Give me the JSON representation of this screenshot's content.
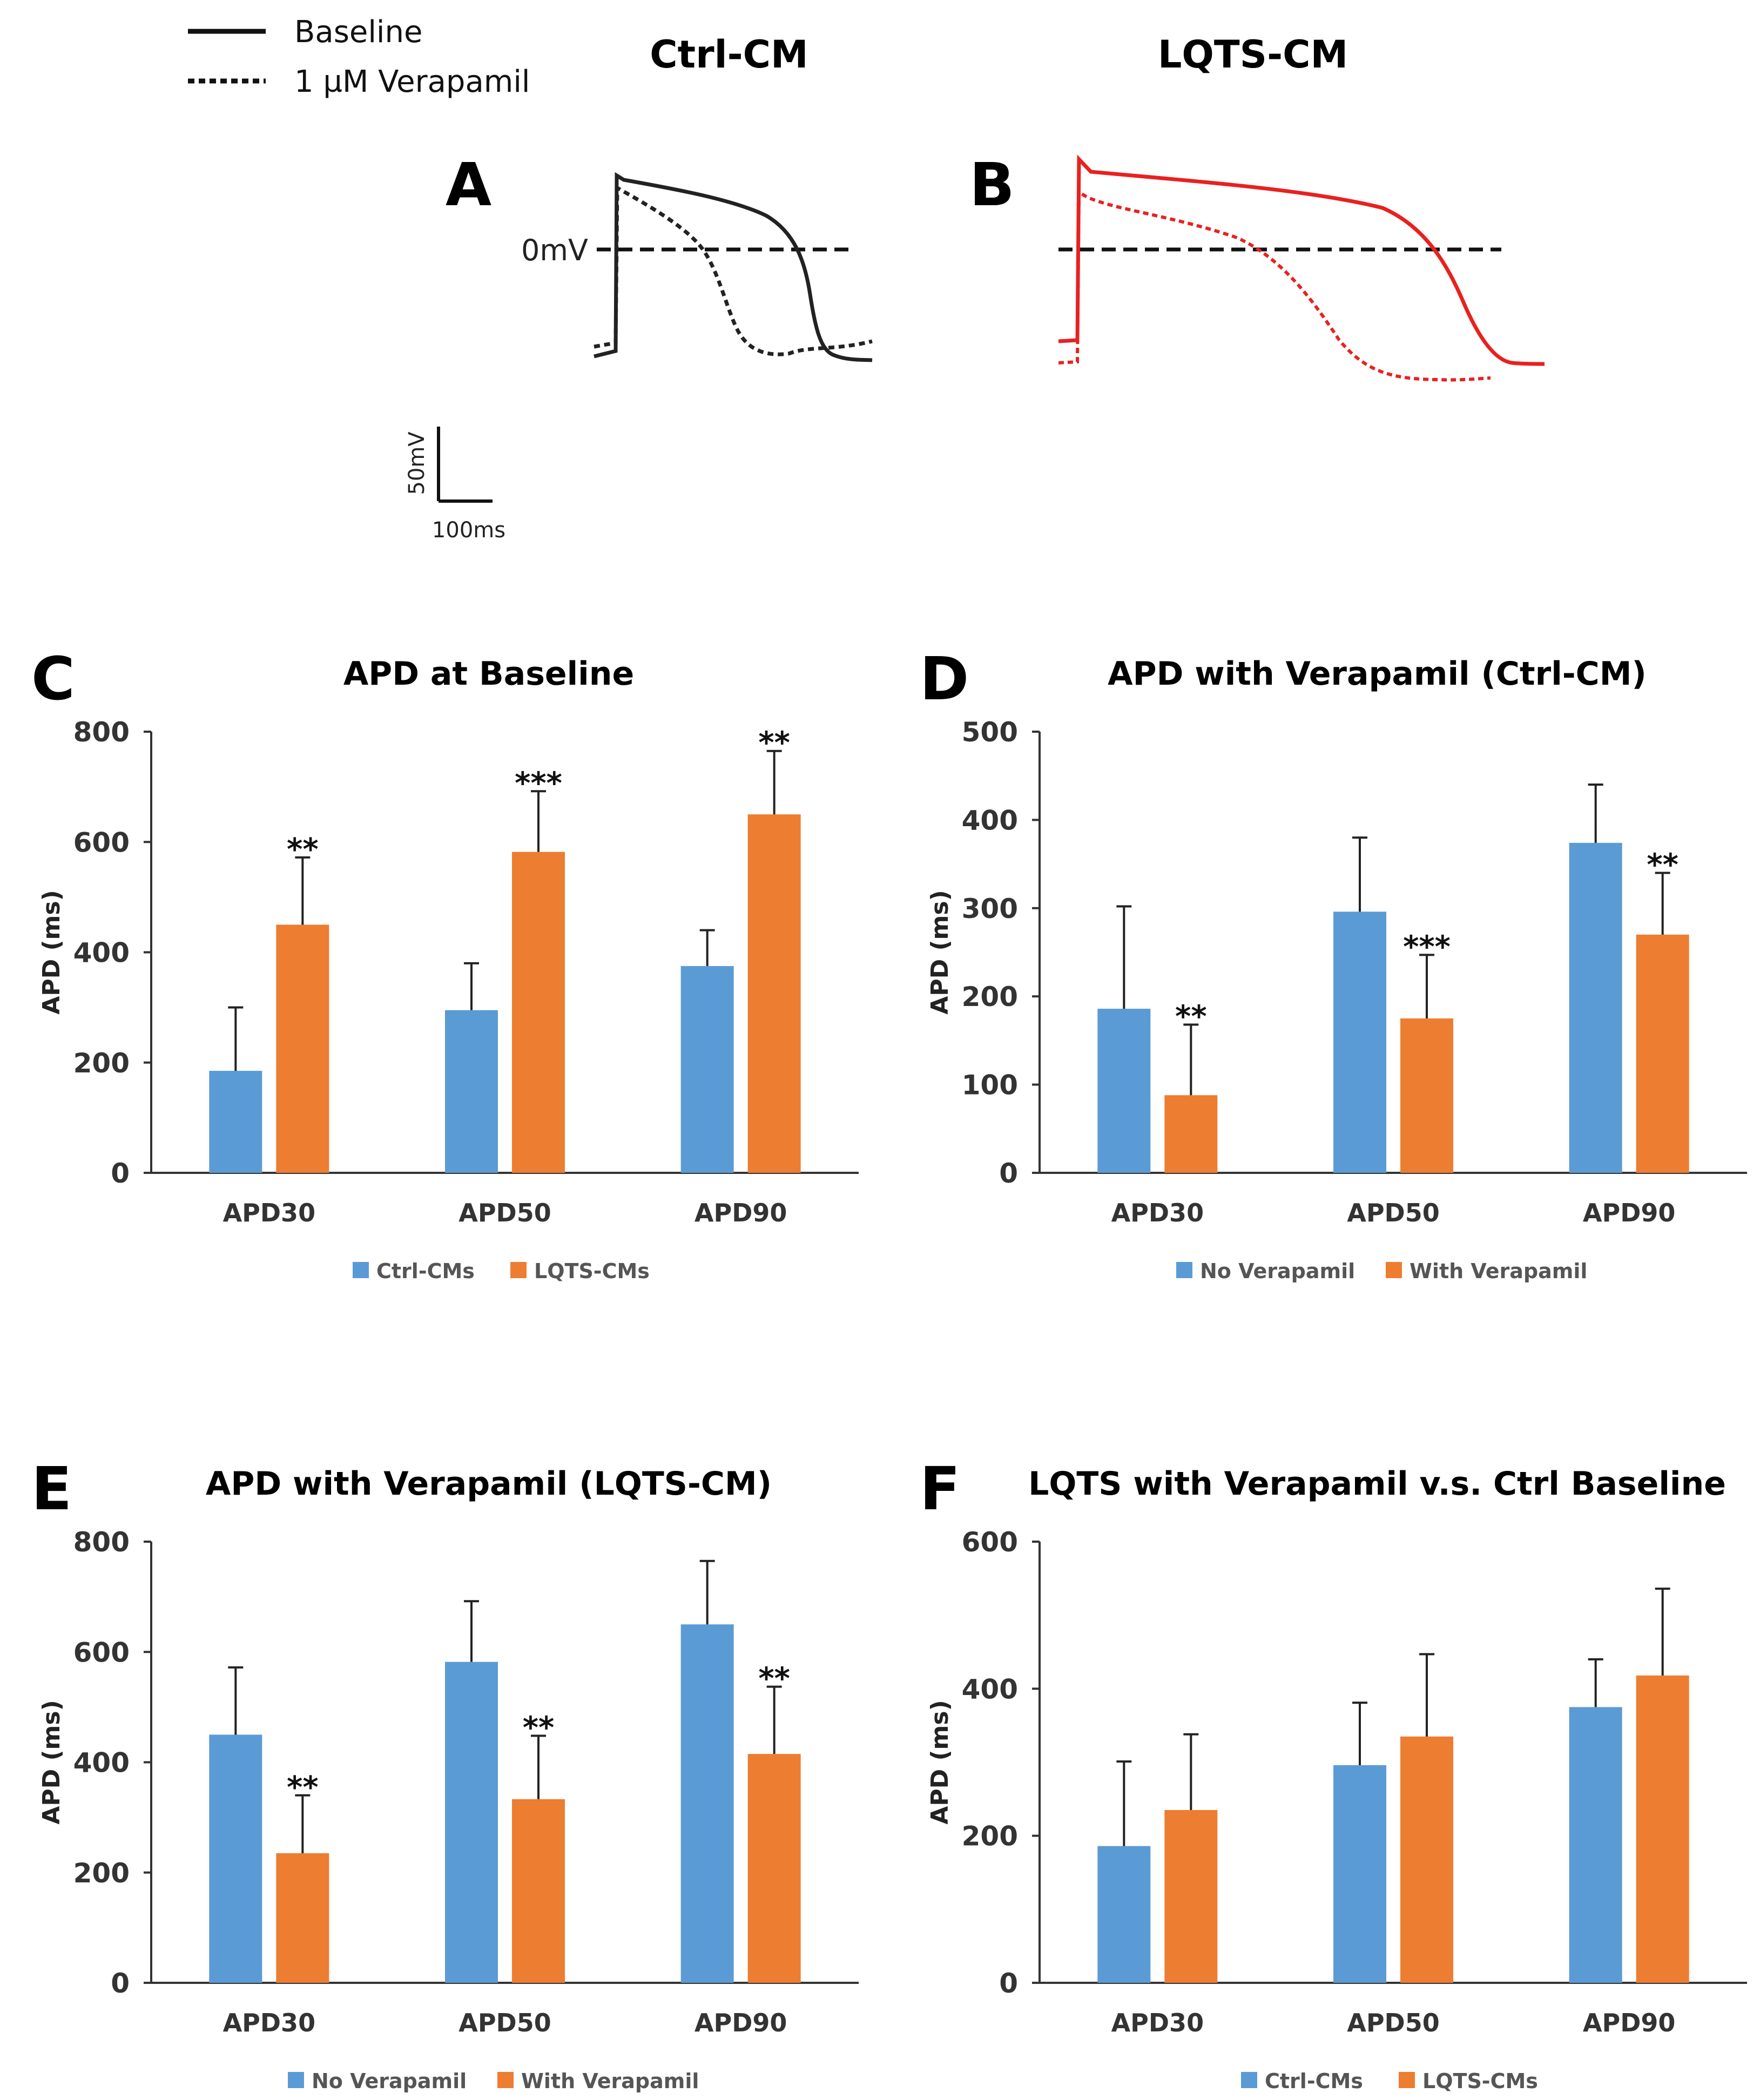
{
  "header": {
    "legend": {
      "solid": "Baseline",
      "dotted": "1 µM Verapamil"
    },
    "col_titles": [
      "Ctrl-CM",
      "LQTS-CM"
    ],
    "panel_a": "A",
    "panel_b": "B",
    "zero_label": "0mV",
    "scale_v": "50mV",
    "scale_t": "100ms"
  },
  "colors": {
    "blue": "#5b9bd5",
    "orange": "#ed7d31",
    "trace_ctrl": "#222222",
    "trace_lqts": "#e8211f"
  },
  "chart_data": [
    {
      "panel": "C",
      "type": "bar",
      "title": "APD at Baseline",
      "ylabel": "APD (ms)",
      "ylim": [
        0,
        800
      ],
      "yticks": [
        0,
        200,
        400,
        600,
        800
      ],
      "categories": [
        "APD30",
        "APD50",
        "APD90"
      ],
      "series": [
        {
          "name": "Ctrl-CMs",
          "values": [
            185,
            295,
            375
          ],
          "errors": [
            115,
            85,
            65
          ]
        },
        {
          "name": "LQTS-CMs",
          "values": [
            450,
            582,
            650
          ],
          "errors": [
            122,
            110,
            115
          ]
        }
      ],
      "significance": [
        "**",
        "***",
        "**"
      ]
    },
    {
      "panel": "D",
      "type": "bar",
      "title": "APD with Verapamil (Ctrl-CM)",
      "ylabel": "APD (ms)",
      "ylim": [
        0,
        500
      ],
      "yticks": [
        0,
        100,
        200,
        300,
        400,
        500
      ],
      "categories": [
        "APD30",
        "APD50",
        "APD90"
      ],
      "series": [
        {
          "name": "No Verapamil",
          "values": [
            186,
            296,
            374
          ],
          "errors": [
            116,
            84,
            66
          ]
        },
        {
          "name": "With Verapamil",
          "values": [
            88,
            175,
            270
          ],
          "errors": [
            80,
            72,
            70
          ]
        }
      ],
      "significance": [
        "**",
        "***",
        "**"
      ]
    },
    {
      "panel": "E",
      "type": "bar",
      "title": "APD with Verapamil (LQTS-CM)",
      "ylabel": "APD (ms)",
      "ylim": [
        0,
        800
      ],
      "yticks": [
        0,
        200,
        400,
        600,
        800
      ],
      "categories": [
        "APD30",
        "APD50",
        "APD90"
      ],
      "series": [
        {
          "name": "No Verapamil",
          "values": [
            450,
            582,
            650
          ],
          "errors": [
            122,
            110,
            115
          ]
        },
        {
          "name": "With Verapamil",
          "values": [
            235,
            333,
            415
          ],
          "errors": [
            105,
            115,
            122
          ]
        }
      ],
      "significance": [
        "**",
        "**",
        "**"
      ]
    },
    {
      "panel": "F",
      "type": "bar",
      "title": "LQTS with Verapamil v.s. Ctrl Baseline",
      "ylabel": "APD (ms)",
      "ylim": [
        0,
        600
      ],
      "yticks": [
        0,
        200,
        400,
        600
      ],
      "categories": [
        "APD30",
        "APD50",
        "APD90"
      ],
      "series": [
        {
          "name": "Ctrl-CMs",
          "values": [
            186,
            296,
            375
          ],
          "errors": [
            115,
            85,
            65
          ]
        },
        {
          "name": "LQTS-CMs",
          "values": [
            235,
            335,
            418
          ],
          "errors": [
            103,
            112,
            118
          ]
        }
      ],
      "significance": [
        "",
        "",
        ""
      ]
    }
  ]
}
